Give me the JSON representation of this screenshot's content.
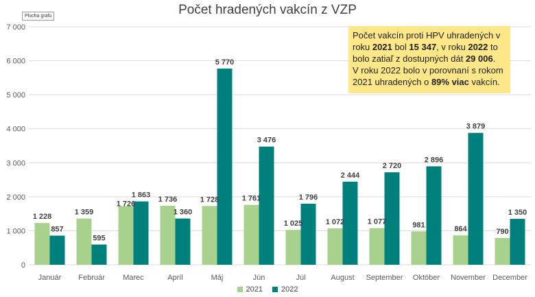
{
  "chart_data": {
    "type": "bar",
    "title": "Počet hradených vakcín z VZP",
    "categories": [
      "Január",
      "Február",
      "Marec",
      "Apríl",
      "Máj",
      "Jún",
      "Júl",
      "August",
      "September",
      "Október",
      "November",
      "December"
    ],
    "series": [
      {
        "name": "2021",
        "color": "#a9d18e",
        "values": [
          1228,
          1359,
          1726,
          1736,
          1728,
          1761,
          1025,
          1072,
          1077,
          981,
          864,
          790
        ],
        "labels": [
          "1 228",
          "1 359",
          "1 726",
          "1 736",
          "1 728",
          "1 761",
          "1 025",
          "1 072",
          "1 077",
          "981",
          "864",
          "790"
        ]
      },
      {
        "name": "2022",
        "color": "#00807c",
        "values": [
          857,
          595,
          1863,
          1360,
          5770,
          3476,
          1796,
          2444,
          2720,
          2896,
          3879,
          1350
        ],
        "labels": [
          "857",
          "595",
          "1 863",
          "1 360",
          "5 770",
          "3 476",
          "1 796",
          "2 444",
          "2 720",
          "2 896",
          "3 879",
          "1 350"
        ]
      }
    ],
    "ylim": [
      0,
      7000
    ],
    "yticks": [
      0,
      1000,
      2000,
      3000,
      4000,
      5000,
      6000,
      7000
    ],
    "ytick_labels": [
      "0",
      "1 000",
      "2 000",
      "3 000",
      "4 000",
      "5 000",
      "6 000",
      "7 000"
    ],
    "grid": true,
    "legend_position": "bottom",
    "xlabel": "",
    "ylabel": ""
  },
  "area_tag": "Plocha grafu",
  "note": {
    "line1_pre": "Počet vakcín proti HPV uhradených v roku ",
    "year_2021": "2021",
    "line1_mid": " bol  ",
    "count_2021": "15 347",
    "line1_mid2": ", v roku ",
    "year_2022": "2022",
    "line1_mid3": " to bolo zatiaľ z dostupných dát ",
    "count_2022": "29 006",
    "line1_end": ".",
    "line2_pre": "V roku 2022 bolo v porovnaní s rokom 2021 uhradených o ",
    "percent": "89% viac",
    "line2_end": " vakcín."
  },
  "colors": {
    "grid": "#d9d9d9",
    "axis_text": "#595959",
    "value_label": "#404040",
    "note_bg": "#fde788"
  }
}
